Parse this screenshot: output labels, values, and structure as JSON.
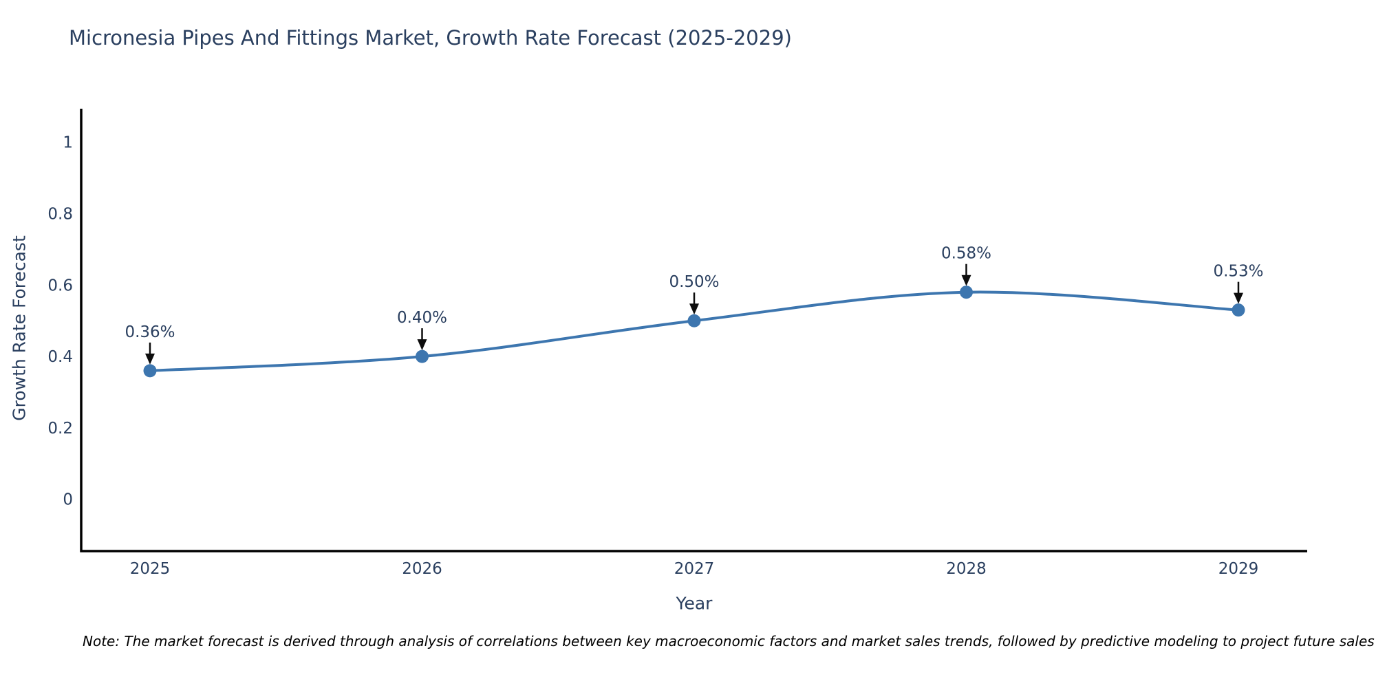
{
  "title": "Micronesia Pipes And Fittings Market, Growth Rate Forecast (2025-2029)",
  "note": "Note: The market forecast is derived through analysis of correlations between key macroeconomic factors and market sales trends, followed by predictive modeling to project future sales",
  "chart_data": {
    "type": "line",
    "line_shape": "spline",
    "title": "Micronesia Pipes And Fittings Market, Growth Rate Forecast (2025-2029)",
    "categories": [
      "2025",
      "2026",
      "2027",
      "2028",
      "2029"
    ],
    "series": [
      {
        "name": "Growth Rate Forecast",
        "values": [
          0.36,
          0.4,
          0.5,
          0.58,
          0.53
        ],
        "point_labels": [
          "0.36%",
          "0.40%",
          "0.50%",
          "0.58%",
          "0.53%"
        ]
      }
    ],
    "xlabel": "Year",
    "ylabel": "Growth Rate Forecast",
    "ytick_values": [
      0,
      0.2,
      0.4,
      0.6,
      0.8,
      1
    ],
    "ytick_labels": [
      "0",
      "0.2",
      "0.4",
      "0.6",
      "0.8",
      "1"
    ],
    "ylim": [
      -0.145,
      1.09
    ],
    "grid": false,
    "legend": "none",
    "markers": true,
    "annotations_with_arrows": true,
    "colors": {
      "line": "#3d76af",
      "marker": "#3d76af",
      "axis_line": "#000000",
      "tick_text": "#2a3f5f",
      "annotation_text": "#2a3f5f",
      "arrow": "#0d0d0d",
      "title_text": "#2a3f5f",
      "background": "#ffffff"
    }
  }
}
